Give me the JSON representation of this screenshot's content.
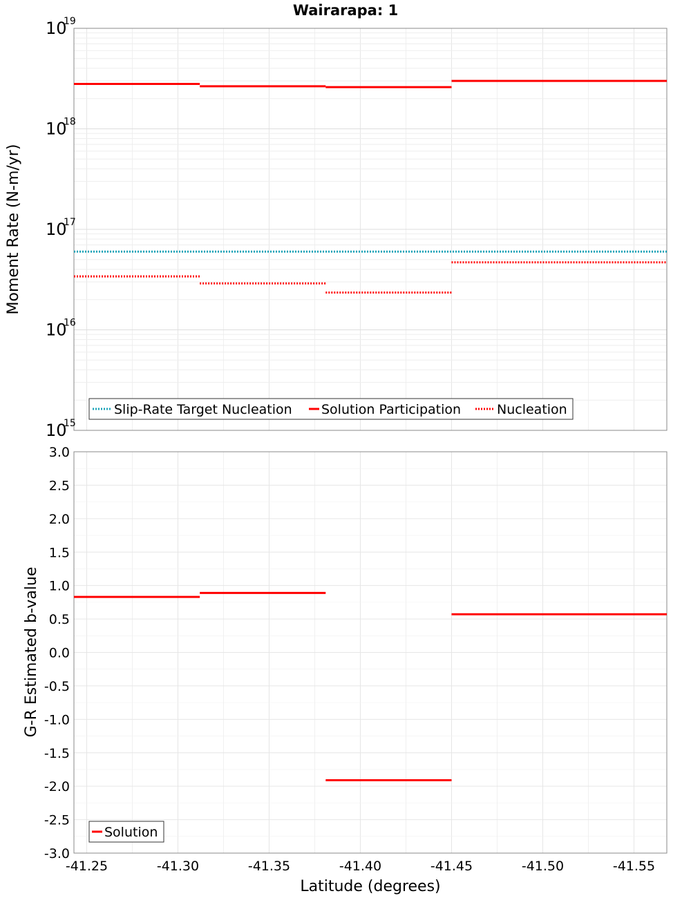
{
  "title": "Wairarapa: 1",
  "xlabel": "Latitude (degrees)",
  "x_ticks": [
    "-41.25",
    "-41.30",
    "-41.35",
    "-41.40",
    "-41.45",
    "-41.50",
    "-41.55"
  ],
  "chart_data": [
    {
      "type": "line",
      "y_scale": "log",
      "ylabel": "Moment Rate (N-m/yr)",
      "xlim": [
        -41.243,
        -41.568
      ],
      "ylim": [
        1000000000000000.0,
        1e+19
      ],
      "y_tick_exponents": [
        "15",
        "16",
        "17",
        "18",
        "19"
      ],
      "grid": true,
      "legend_position": "lower-left",
      "series": [
        {
          "name": "Slip-Rate Target Nucleation",
          "style": "dotted",
          "color": "#1aa3b8",
          "segments": [
            [
              -41.243,
              -41.568,
              6e+16
            ]
          ]
        },
        {
          "name": "Solution Participation",
          "style": "solid",
          "color": "#ff0000",
          "segments": [
            [
              -41.243,
              -41.312,
              2.8e+18
            ],
            [
              -41.312,
              -41.381,
              2.65e+18
            ],
            [
              -41.381,
              -41.45,
              2.6e+18
            ],
            [
              -41.45,
              -41.568,
              3e+18
            ]
          ]
        },
        {
          "name": "Nucleation",
          "style": "dotted",
          "color": "#ff0000",
          "segments": [
            [
              -41.243,
              -41.312,
              3.4e+16
            ],
            [
              -41.312,
              -41.381,
              2.9e+16
            ],
            [
              -41.381,
              -41.45,
              2.35e+16
            ],
            [
              -41.45,
              -41.568,
              4.7e+16
            ]
          ]
        }
      ]
    },
    {
      "type": "line",
      "ylabel": "G-R Estimated b-value",
      "xlim": [
        -41.243,
        -41.568
      ],
      "ylim": [
        -3.0,
        3.0
      ],
      "y_ticks": [
        "3.0",
        "2.5",
        "2.0",
        "1.5",
        "1.0",
        "0.5",
        "0.0",
        "-0.5",
        "-1.0",
        "-1.5",
        "-2.0",
        "-2.5",
        "-3.0"
      ],
      "grid": true,
      "legend_position": "lower-left",
      "series": [
        {
          "name": "Solution",
          "style": "solid",
          "color": "#ff0000",
          "segments": [
            [
              -41.243,
              -41.312,
              0.83
            ],
            [
              -41.312,
              -41.381,
              0.89
            ],
            [
              -41.381,
              -41.45,
              -1.91
            ],
            [
              -41.45,
              -41.568,
              0.57
            ]
          ]
        }
      ]
    }
  ]
}
